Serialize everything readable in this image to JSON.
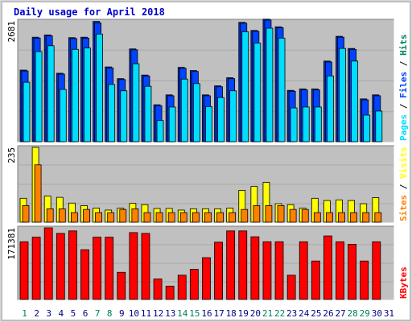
{
  "chart_data": {
    "type": "bar",
    "title": "Daily usage for April 2018",
    "categories": [
      "1",
      "2",
      "3",
      "4",
      "5",
      "6",
      "7",
      "8",
      "9",
      "10",
      "11",
      "12",
      "13",
      "14",
      "15",
      "16",
      "17",
      "18",
      "19",
      "20",
      "21",
      "22",
      "23",
      "24",
      "25",
      "26",
      "27",
      "28",
      "29",
      "30",
      "31"
    ],
    "weekend_days": [
      1,
      7,
      8,
      14,
      15,
      21,
      22,
      28,
      29
    ],
    "colors": {
      "pages": "#00ddff",
      "files": "#0044ff",
      "hits": "#00805c",
      "visits": "#ffff00",
      "sites": "#ff8000",
      "kbytes": "#ff0000",
      "weekday_label": "#000080",
      "weekend_label": "#00805c",
      "title": "#0000cc",
      "panel": "#c0c0c0",
      "frame": "#bfbfbf"
    },
    "panels": [
      {
        "name": "hits-panel",
        "ymax_label": "2681",
        "ymax": 2681,
        "legend": [
          {
            "text": "Pages",
            "color": "#00ddff"
          },
          {
            "text": "Files",
            "color": "#0044ff"
          },
          {
            "text": "Hits",
            "color": "#00805c"
          }
        ],
        "series": [
          {
            "name": "Hits",
            "values": [
              1590,
              2320,
              2370,
              1520,
              2310,
              2320,
              2670,
              1660,
              1400,
              2060,
              1480,
              820,
              1040,
              1650,
              1580,
              1040,
              1240,
              1420,
              2650,
              2470,
              2720,
              2550,
              1140,
              1170,
              1170,
              1790,
              2340,
              2070,
              950,
              1040,
              0
            ]
          },
          {
            "name": "Files",
            "values": [
              1570,
              2300,
              2350,
              1500,
              2290,
              2300,
              2640,
              1640,
              1380,
              2040,
              1460,
              800,
              1020,
              1630,
              1560,
              1020,
              1220,
              1400,
              2630,
              2450,
              2700,
              2530,
              1120,
              1150,
              1150,
              1770,
              2320,
              2050,
              930,
              1020,
              0
            ]
          },
          {
            "name": "Pages",
            "values": [
              1320,
              2000,
              2130,
              1160,
              2050,
              2080,
              2390,
              1270,
              1130,
              1730,
              1230,
              470,
              770,
              1390,
              1290,
              780,
              980,
              1130,
              2440,
              2190,
              2520,
              2300,
              750,
              770,
              770,
              1460,
              2070,
              1790,
              590,
              680,
              0
            ]
          }
        ]
      },
      {
        "name": "visits-panel",
        "ymax_label": "235",
        "ymax": 235,
        "legend": [
          {
            "text": "Sites",
            "color": "#ff8000"
          },
          {
            "text": "Visits",
            "color": "#ffff00"
          }
        ],
        "series": [
          {
            "name": "Visits",
            "values": [
              75,
              235,
              82,
              78,
              60,
              52,
              44,
              38,
              44,
              59,
              55,
              43,
              43,
              38,
              42,
              42,
              42,
              44,
              100,
              112,
              125,
              58,
              55,
              44,
              75,
              68,
              70,
              68,
              58,
              77,
              0
            ]
          },
          {
            "name": "Sites",
            "values": [
              52,
              180,
              42,
              42,
              30,
              40,
              30,
              30,
              40,
              42,
              30,
              30,
              30,
              30,
              30,
              30,
              30,
              30,
              40,
              52,
              52,
              52,
              40,
              40,
              30,
              30,
              30,
              30,
              30,
              30,
              0
            ]
          }
        ]
      },
      {
        "name": "kbytes-panel",
        "ymax_label": "171381",
        "ymax": 171381,
        "legend": [
          {
            "text": "KBytes",
            "color": "#ff0000"
          }
        ],
        "series": [
          {
            "name": "KBytes",
            "values": [
              138000,
              149000,
              171381,
              158000,
              164000,
              119000,
              149000,
              149000,
              65000,
              160000,
              158000,
              49000,
              32000,
              58000,
              72000,
              100000,
              137000,
              164000,
              164000,
              150000,
              138000,
              138000,
              58000,
              138000,
              92000,
              152000,
              138000,
              132000,
              92000,
              138000,
              0
            ]
          }
        ]
      }
    ]
  }
}
